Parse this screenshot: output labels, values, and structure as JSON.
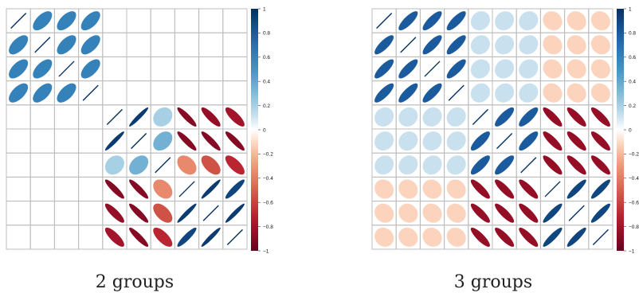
{
  "chart_data": [
    {
      "type": "heatmap",
      "title": "",
      "caption": "2 groups",
      "n": 10,
      "groups": [
        [
          0,
          1,
          2,
          3
        ],
        [
          4,
          5,
          6,
          7,
          8,
          9
        ]
      ],
      "matrix": [
        [
          1,
          0.6,
          0.6,
          0.6,
          0,
          0,
          0,
          0,
          0,
          0
        ],
        [
          0.6,
          1,
          0.6,
          0.6,
          0,
          0,
          0,
          0,
          0,
          0
        ],
        [
          0.6,
          0.6,
          1,
          0.6,
          0,
          0,
          0,
          0,
          0,
          0
        ],
        [
          0.6,
          0.6,
          0.6,
          1,
          0,
          0,
          0,
          0,
          0,
          0
        ],
        [
          0,
          0,
          0,
          0,
          1,
          0.95,
          0.2,
          -0.9,
          -0.85,
          -0.8
        ],
        [
          0,
          0,
          0,
          0,
          0.95,
          1,
          0.35,
          -0.9,
          -0.9,
          -0.9
        ],
        [
          0,
          0,
          0,
          0,
          0.2,
          0.35,
          1,
          -0.35,
          -0.55,
          -0.7
        ],
        [
          0,
          0,
          0,
          0,
          -0.9,
          -0.9,
          -0.35,
          1,
          0.95,
          0.9
        ],
        [
          0,
          0,
          0,
          0,
          -0.85,
          -0.9,
          -0.55,
          0.95,
          1,
          0.95
        ],
        [
          0,
          0,
          0,
          0,
          -0.8,
          -0.9,
          -0.7,
          0.9,
          0.95,
          1
        ]
      ],
      "colorbar_ticks": [
        "1",
        "0.8",
        "0.6",
        "0.4",
        "0.2",
        "0",
        "−0.2",
        "−0.4",
        "−0.6",
        "−0.8",
        "−1"
      ],
      "ylim": [
        -1,
        1
      ]
    },
    {
      "type": "heatmap",
      "title": "",
      "caption": "3 groups",
      "n": 10,
      "groups": [
        [
          0,
          1,
          2,
          3
        ],
        [
          4,
          5,
          6
        ],
        [
          7,
          8,
          9
        ]
      ],
      "matrix": [
        [
          1,
          0.8,
          0.8,
          0.8,
          0.12,
          0.12,
          0.12,
          -0.12,
          -0.12,
          -0.12
        ],
        [
          0.8,
          1,
          0.8,
          0.8,
          0.12,
          0.12,
          0.12,
          -0.12,
          -0.12,
          -0.12
        ],
        [
          0.8,
          0.8,
          1,
          0.8,
          0.12,
          0.12,
          0.12,
          -0.12,
          -0.12,
          -0.12
        ],
        [
          0.8,
          0.8,
          0.8,
          1,
          0.12,
          0.12,
          0.12,
          -0.12,
          -0.12,
          -0.12
        ],
        [
          0.12,
          0.12,
          0.12,
          0.12,
          1,
          0.8,
          0.8,
          -0.85,
          -0.85,
          -0.85
        ],
        [
          0.12,
          0.12,
          0.12,
          0.12,
          0.8,
          1,
          0.8,
          -0.85,
          -0.85,
          -0.85
        ],
        [
          0.12,
          0.12,
          0.12,
          0.12,
          0.8,
          0.8,
          1,
          -0.85,
          -0.85,
          -0.85
        ],
        [
          -0.12,
          -0.12,
          -0.12,
          -0.12,
          -0.85,
          -0.85,
          -0.85,
          1,
          0.9,
          0.9
        ],
        [
          -0.12,
          -0.12,
          -0.12,
          -0.12,
          -0.85,
          -0.85,
          -0.85,
          0.9,
          1,
          0.9
        ],
        [
          -0.12,
          -0.12,
          -0.12,
          -0.12,
          -0.85,
          -0.85,
          -0.85,
          0.9,
          0.9,
          1
        ]
      ],
      "colorbar_ticks": [
        "1",
        "0.8",
        "0.6",
        "0.4",
        "0.2",
        "0",
        "−0.2",
        "−0.4",
        "−0.6",
        "−0.8",
        "−1"
      ],
      "ylim": [
        -1,
        1
      ]
    }
  ],
  "colors": {
    "negative_end": "#67001f",
    "neutral": "#ffffff",
    "positive_end": "#053061",
    "grid": "#bdbdbd"
  }
}
